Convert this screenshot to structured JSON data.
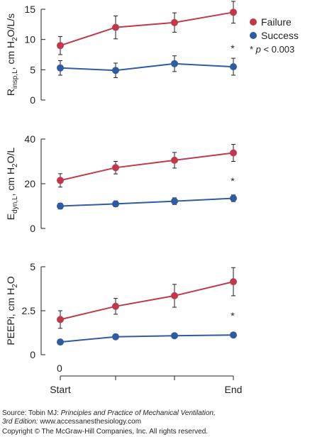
{
  "chart_data": [
    {
      "type": "line",
      "categories": [
        "Start",
        "",
        "",
        "End"
      ],
      "ylabel": {
        "main": "R",
        "sub": "insp,L",
        "rest": ", cm H",
        "sub2": "2",
        "rest2": "O/L/s"
      },
      "yticks": [
        "0",
        "5",
        "10",
        "15"
      ],
      "ylim": [
        0,
        15
      ],
      "series": [
        {
          "name": "Failure",
          "values": [
            9.0,
            12.0,
            12.8,
            14.5
          ],
          "err": [
            1.5,
            1.9,
            1.6,
            1.8
          ]
        },
        {
          "name": "Success",
          "values": [
            5.3,
            4.9,
            6.0,
            5.5
          ],
          "err": [
            1.2,
            1.2,
            1.3,
            1.4
          ]
        }
      ],
      "annotation": "*"
    },
    {
      "type": "line",
      "categories": [
        "Start",
        "",
        "",
        "End"
      ],
      "ylabel": {
        "main": "E",
        "sub": "dyn,L",
        "rest": ", cm H",
        "sub2": "2",
        "rest2": "O/L"
      },
      "yticks": [
        "0",
        "20",
        "40"
      ],
      "ylim": [
        0,
        40
      ],
      "series": [
        {
          "name": "Failure",
          "values": [
            21.5,
            27.2,
            30.5,
            33.8
          ],
          "err": [
            3.0,
            2.8,
            3.5,
            3.8
          ]
        },
        {
          "name": "Success",
          "values": [
            10.0,
            11.0,
            12.2,
            13.5
          ],
          "err": [
            1.3,
            1.3,
            1.5,
            1.5
          ]
        }
      ],
      "annotation": "*"
    },
    {
      "type": "line",
      "categories": [
        "Start",
        "",
        "",
        "End"
      ],
      "xlabels": [
        "Start",
        "End"
      ],
      "ylabel": {
        "main": "PEEPi, cm H",
        "sub": "2",
        "rest": "O"
      },
      "yticks": [
        "0",
        "2.5",
        "5"
      ],
      "ylim": [
        0,
        5
      ],
      "series": [
        {
          "name": "Failure",
          "values": [
            2.0,
            2.75,
            3.35,
            4.15
          ],
          "err": [
            0.5,
            0.45,
            0.65,
            0.8
          ]
        },
        {
          "name": "Success",
          "values": [
            0.72,
            1.02,
            1.08,
            1.12
          ],
          "err": [
            0.05,
            0.05,
            0.05,
            0.05
          ]
        }
      ],
      "annotation": "*",
      "x_origin_label": "0"
    }
  ],
  "legend": {
    "items": [
      {
        "label": "Failure",
        "color": "#c0384b"
      },
      {
        "label": "Success",
        "color": "#2f5ba3"
      }
    ],
    "note_star": "* ",
    "note_p": "p",
    "note_rest": " < 0.003"
  },
  "colors": {
    "failure": "#c0384b",
    "success": "#2f5ba3",
    "axis": "#231f20"
  },
  "source": {
    "prefix": "Source: Tobin MJ: ",
    "title": "Principles and Practice of Mechanical Ventilation,",
    "edition": "3rd Edition:",
    "url": " www.accessanesthesiology.com",
    "copyright": "Copyright © The McGraw-Hill Companies, Inc. All rights reserved."
  }
}
